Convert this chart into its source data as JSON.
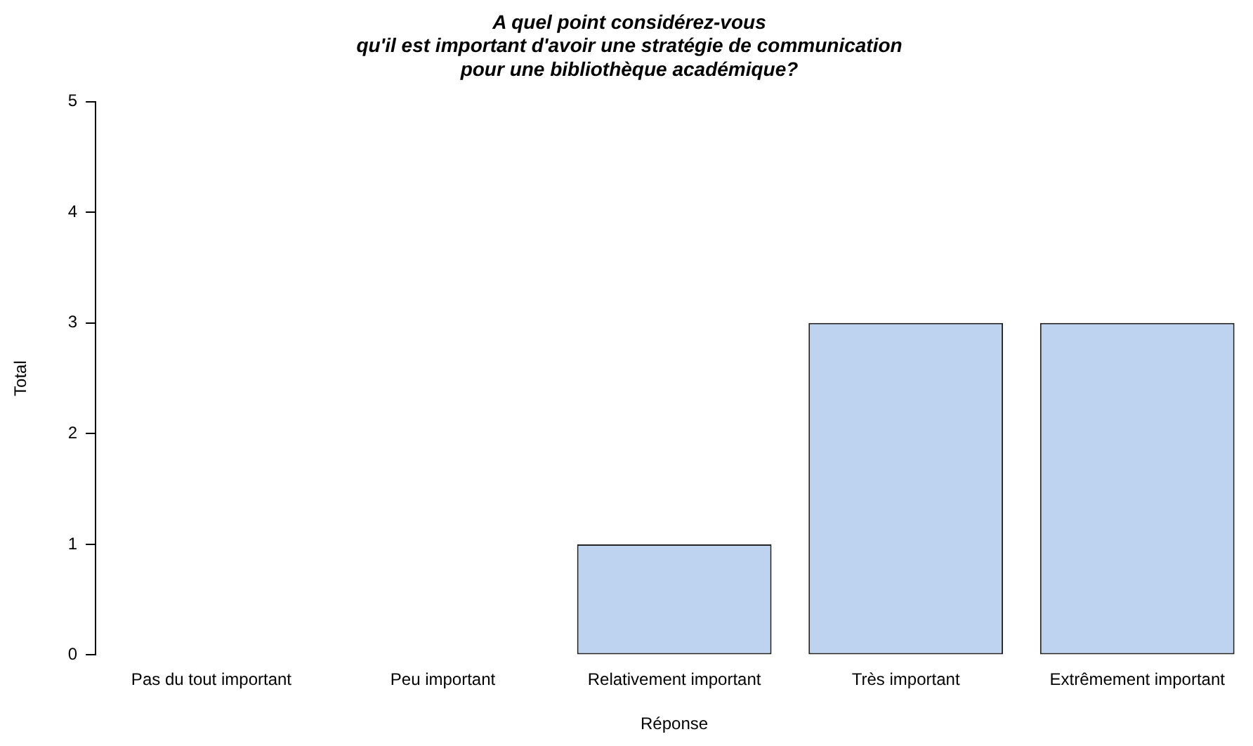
{
  "chart_data": {
    "type": "bar",
    "title": "A quel point considérez-vous\nqu'il est important d'avoir une stratégie de communication\npour une bibliothèque académique?",
    "xlabel": "Réponse",
    "ylabel": "Total",
    "categories": [
      "Pas du tout important",
      "Peu important",
      "Relativement important",
      "Très important",
      "Extrêmement important"
    ],
    "values": [
      0,
      0,
      1,
      3,
      3
    ],
    "color": "#bdd3f0",
    "ylim": [
      0,
      5
    ],
    "yticks": [
      0,
      1,
      2,
      3,
      4,
      5
    ],
    "grid": false,
    "legend": false
  }
}
